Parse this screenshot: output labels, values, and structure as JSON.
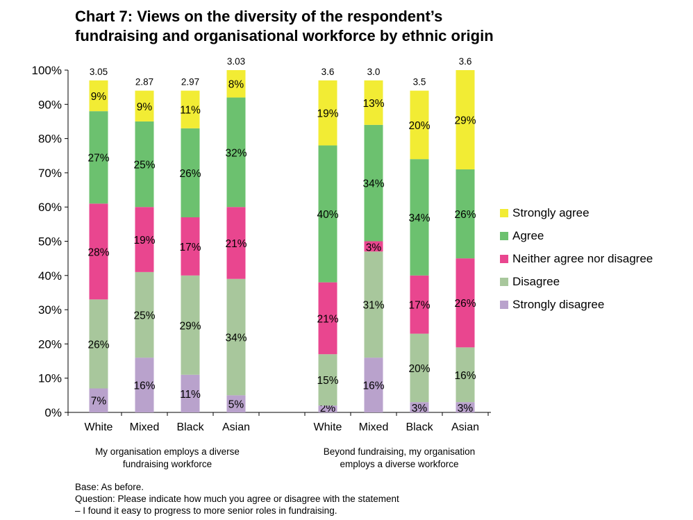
{
  "title": {
    "line1": "Chart 7: Views on the diversity of the respondent’s",
    "line2": "fundraising and organisational workforce by ethnic origin"
  },
  "chart_data": {
    "type": "bar",
    "stacked": true,
    "ylim": [
      0,
      100
    ],
    "y_ticks": [
      "0%",
      "10%",
      "20%",
      "30%",
      "40%",
      "50%",
      "60%",
      "70%",
      "80%",
      "90%",
      "100%"
    ],
    "grid": false,
    "legend_position": "right",
    "groups": [
      {
        "label": "My organisation employs a diverse fundraising workforce",
        "label_lines": [
          "My organisation employs a diverse",
          "fundraising workforce"
        ],
        "categories": [
          "White",
          "Mixed",
          "Black",
          "Asian"
        ],
        "scores": [
          "3.05",
          "2.87",
          "2.97",
          "3.03"
        ],
        "series": [
          {
            "name": "Strongly disagree",
            "values": [
              7,
              16,
              11,
              5
            ],
            "labels": [
              "7%",
              "16%",
              "11%",
              "5%"
            ]
          },
          {
            "name": "Disagree",
            "values": [
              26,
              25,
              29,
              34
            ],
            "labels": [
              "26%",
              "25%",
              "29%",
              "34%"
            ]
          },
          {
            "name": "Neither agree nor disagree",
            "values": [
              28,
              19,
              17,
              21
            ],
            "labels": [
              "28%",
              "19%",
              "17%",
              "21%"
            ]
          },
          {
            "name": "Agree",
            "values": [
              27,
              25,
              26,
              32
            ],
            "labels": [
              "27%",
              "25%",
              "26%",
              "32%"
            ]
          },
          {
            "name": "Strongly agree",
            "values": [
              9,
              9,
              11,
              8
            ],
            "labels": [
              "9%",
              "9%",
              "11%",
              "8%"
            ]
          }
        ]
      },
      {
        "label": "Beyond fundraising, my organisation employs a diverse workforce",
        "label_lines": [
          "Beyond fundraising, my organisation",
          "employs a diverse workforce"
        ],
        "categories": [
          "White",
          "Mixed",
          "Black",
          "Asian"
        ],
        "scores": [
          "3.6",
          "3.0",
          "3.5",
          "3.6"
        ],
        "series": [
          {
            "name": "Strongly disagree",
            "values": [
              2,
              16,
              3,
              3
            ],
            "labels": [
              "2%",
              "16%",
              "3%",
              "3%"
            ]
          },
          {
            "name": "Disagree",
            "values": [
              15,
              31,
              20,
              16
            ],
            "labels": [
              "15%",
              "31%",
              "20%",
              "16%"
            ]
          },
          {
            "name": "Neither agree nor disagree",
            "values": [
              21,
              3,
              17,
              26
            ],
            "labels": [
              "21%",
              "3%",
              "17%",
              "26%"
            ]
          },
          {
            "name": "Agree",
            "values": [
              40,
              34,
              34,
              26
            ],
            "labels": [
              "40%",
              "34%",
              "34%",
              "26%"
            ]
          },
          {
            "name": "Strongly agree",
            "values": [
              19,
              13,
              20,
              29
            ],
            "labels": [
              "19%",
              "13%",
              "20%",
              "29%"
            ]
          }
        ]
      }
    ],
    "colors": {
      "Strongly disagree": "#b9a2cc",
      "Disagree": "#a8c79c",
      "Neither agree nor disagree": "#e9468f",
      "Agree": "#6cc16f",
      "Strongly agree": "#f2ec34"
    }
  },
  "legend": {
    "items": [
      {
        "name": "Strongly agree",
        "color": "#f2ec34"
      },
      {
        "name": "Agree",
        "color": "#6cc16f"
      },
      {
        "name": "Neither agree nor disagree",
        "color": "#e9468f"
      },
      {
        "name": "Disagree",
        "color": "#a8c79c"
      },
      {
        "name": "Strongly disagree",
        "color": "#b9a2cc"
      }
    ]
  },
  "notes": {
    "base": "Base: As before.",
    "question_line1": "Question: Please indicate how much you agree or disagree with the statement",
    "question_line2": "– I found it easy to progress to more senior roles in fundraising."
  }
}
